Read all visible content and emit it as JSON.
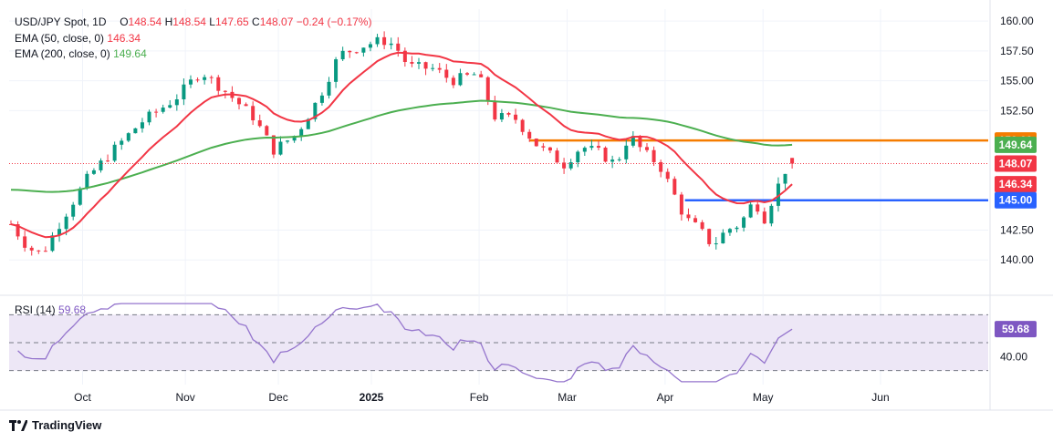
{
  "legend": {
    "symbol": "USD/JPY Spot, 1D",
    "open_label": "O",
    "open": "148.54",
    "high_label": "H",
    "high": "148.54",
    "low_label": "L",
    "low": "147.65",
    "close_label": "C",
    "close": "148.07",
    "change": "−0.24 (−0.17%)",
    "ema50_label": "EMA (50, close, 0)",
    "ema50_value": "146.34",
    "ema200_label": "EMA (200, close, 0)",
    "ema200_value": "149.64",
    "rsi_label": "RSI (14)",
    "rsi_value": "59.68"
  },
  "branding": {
    "name": "TradingView"
  },
  "colors": {
    "up": "#089981",
    "down": "#f23645",
    "ema50": "#f23645",
    "ema200": "#4caf50",
    "resistance": "#f57c00",
    "support": "#2962ff",
    "rsi": "#9575cd",
    "rsi_band": "#ede7f6"
  },
  "chart_data": [
    {
      "type": "candlestick",
      "title": "",
      "ylim": [
        137.5,
        161.0
      ],
      "y_ticks": [
        "160.00",
        "157.50",
        "155.00",
        "152.50",
        "142.50",
        "140.00"
      ],
      "x_ticks": [
        "Oct",
        "Nov",
        "Dec",
        "2025",
        "Feb",
        "Mar",
        "Apr",
        "May",
        "Jun"
      ],
      "ema_lines": [
        {
          "name": "EMA 50",
          "value": 146.34
        },
        {
          "name": "EMA 200",
          "value": 149.64
        }
      ],
      "horizontal_levels": [
        {
          "label": "150.00",
          "value": 150.0,
          "color": "resistance"
        },
        {
          "label": "145.00",
          "value": 145.0,
          "color": "support"
        }
      ],
      "price_tags": [
        {
          "label": "150.00",
          "value": 150.0,
          "color": "#f57c00"
        },
        {
          "label": "149.64",
          "value": 149.64,
          "color": "#4caf50"
        },
        {
          "label": "148.07",
          "value": 148.07,
          "color": "#f23645"
        },
        {
          "label": "146.34",
          "value": 146.34,
          "color": "#f23645"
        },
        {
          "label": "145.00",
          "value": 145.0,
          "color": "#2962ff"
        }
      ],
      "last_close": 148.07
    },
    {
      "type": "line",
      "title": "RSI (14)",
      "ylim": [
        20,
        80
      ],
      "bands": [
        30,
        50,
        70
      ],
      "y_ticks": [
        "40.00"
      ],
      "last_value": 59.68
    }
  ]
}
